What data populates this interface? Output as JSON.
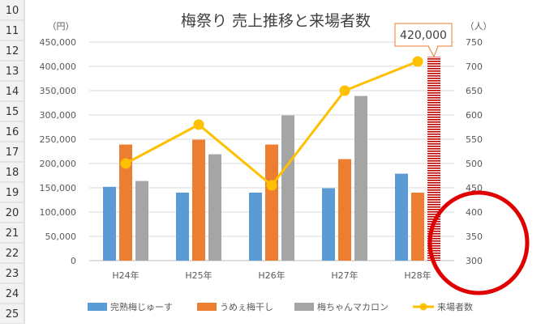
{
  "spreadsheet": {
    "row_numbers": [
      "10",
      "11",
      "12",
      "13",
      "14",
      "15",
      "16",
      "17",
      "18",
      "19",
      "20",
      "21",
      "22",
      "23",
      "24",
      "25"
    ]
  },
  "chart_data": {
    "type": "bar",
    "title": "梅祭り 売上推移と来場者数",
    "categories": [
      "H24年",
      "H25年",
      "H26年",
      "H27年",
      "H28年"
    ],
    "series": [
      {
        "name": "完熟梅じゅーす",
        "values": [
          152000,
          140000,
          140000,
          149000,
          179000
        ],
        "color": "#5b9bd5",
        "axis": "left"
      },
      {
        "name": "うめぇ梅干し",
        "values": [
          239000,
          249000,
          239000,
          209000,
          140000
        ],
        "color": "#ed7d31",
        "axis": "left"
      },
      {
        "name": "梅ちゃんマカロン",
        "values": [
          164000,
          219000,
          299000,
          339000,
          420000
        ],
        "color": "#a5a5a5",
        "axis": "left"
      },
      {
        "name": "来場者数",
        "type": "line",
        "values": [
          500,
          580,
          455,
          650,
          710
        ],
        "color": "#ffc000",
        "axis": "right"
      }
    ],
    "y_left": {
      "unit": "（円）",
      "min": 0,
      "max": 450000,
      "ticks": [
        "0",
        "50,000",
        "100,000",
        "150,000",
        "200,000",
        "250,000",
        "300,000",
        "350,000",
        "400,000",
        "450,000"
      ]
    },
    "y_right": {
      "unit": "（人）",
      "min": 300,
      "max": 750,
      "ticks": [
        "300",
        "350",
        "400",
        "450",
        "500",
        "550",
        "600",
        "650",
        "700",
        "750"
      ]
    },
    "highlighted_bar": {
      "category": "H28年",
      "series": "梅ちゃんマカロン",
      "callout": "420,000",
      "fill": "#c00000"
    },
    "annotation_circle_color": "#e00000",
    "legend_position": "bottom",
    "gridlines": true
  }
}
